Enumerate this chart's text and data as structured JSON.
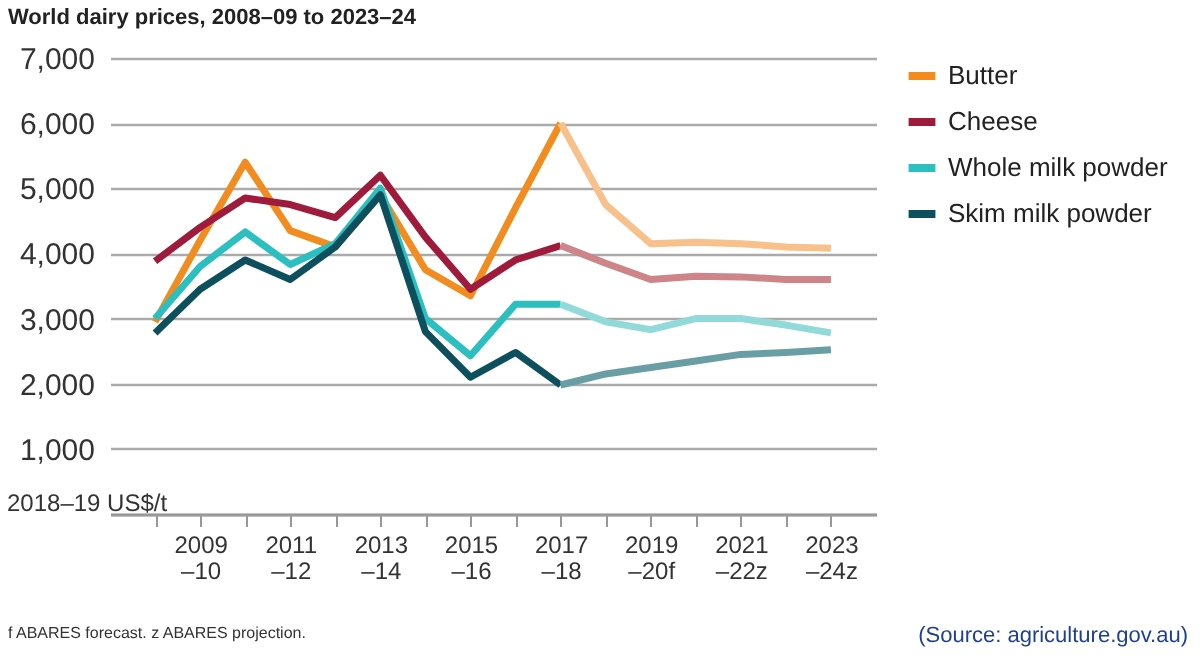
{
  "chart_data": {
    "type": "line",
    "title": "World dairy prices, 2008–09 to 2023–24",
    "ylabel": "2018–19 US$/t",
    "categories": [
      null,
      "2009\n–10",
      null,
      "2011\n–12",
      null,
      "2013\n–14",
      null,
      "2015\n–16",
      null,
      "2017\n–18",
      null,
      "2019\n–20f",
      null,
      "2021\n–22z",
      null,
      "2023\n–24z"
    ],
    "ylim": [
      0,
      7000
    ],
    "yticks": [
      {
        "value": 0,
        "label": null
      },
      {
        "value": 1000,
        "label": "1,000"
      },
      {
        "value": 2000,
        "label": "2,000"
      },
      {
        "value": 3000,
        "label": "3,000"
      },
      {
        "value": 4000,
        "label": "4,000"
      },
      {
        "value": 5000,
        "label": "5,000"
      },
      {
        "value": 6000,
        "label": "6,000"
      },
      {
        "value": 7000,
        "label": "7,000"
      }
    ],
    "grid": "y",
    "legend": "top right",
    "marker": "none",
    "line_style": "solid",
    "series": [
      {
        "name": "Butter",
        "color": "#f28c1e",
        "values": [
          2950,
          4200,
          5400,
          4350,
          4100,
          4900,
          3750,
          3350,
          4700,
          6000,
          null,
          null,
          null,
          null,
          null,
          null
        ]
      },
      {
        "name": "Cheese",
        "color": "#9e1b3c",
        "values": [
          3880,
          4400,
          4850,
          4750,
          4550,
          5200,
          4250,
          3450,
          3900,
          4120,
          null,
          null,
          null,
          null,
          null,
          null
        ]
      },
      {
        "name": "Whole milk powder",
        "color": "#2bbfbf",
        "values": [
          3000,
          3800,
          4330,
          3830,
          4150,
          5000,
          3000,
          2430,
          3220,
          3220,
          null,
          null,
          null,
          null,
          null,
          null
        ]
      },
      {
        "name": "Skim milk powder",
        "color": "#0d4f5c",
        "values": [
          2780,
          3450,
          3900,
          3600,
          4100,
          4900,
          2800,
          2100,
          2480,
          1980,
          null,
          null,
          null,
          null,
          null,
          null
        ]
      },
      {
        "color": "#f8c08a",
        "values": [
          null,
          null,
          null,
          null,
          null,
          null,
          null,
          null,
          null,
          6000,
          4750,
          4150,
          4170,
          4150,
          4100,
          4080
        ]
      },
      {
        "color": "#cd8589",
        "values": [
          null,
          null,
          null,
          null,
          null,
          null,
          null,
          null,
          null,
          4120,
          3850,
          3600,
          3650,
          3640,
          3600,
          3600
        ]
      },
      {
        "color": "#92dada",
        "values": [
          null,
          null,
          null,
          null,
          null,
          null,
          null,
          null,
          null,
          3220,
          2950,
          2830,
          3000,
          3000,
          2900,
          2780
        ]
      },
      {
        "color": "#6a9ea5",
        "values": [
          null,
          null,
          null,
          null,
          null,
          null,
          null,
          null,
          null,
          1980,
          2150,
          2250,
          2350,
          2450,
          2480,
          2520
        ]
      }
    ],
    "annotations": [
      "f ABARES forecast. z ABARES projection.",
      "(Source: agriculture.gov.au)"
    ]
  }
}
